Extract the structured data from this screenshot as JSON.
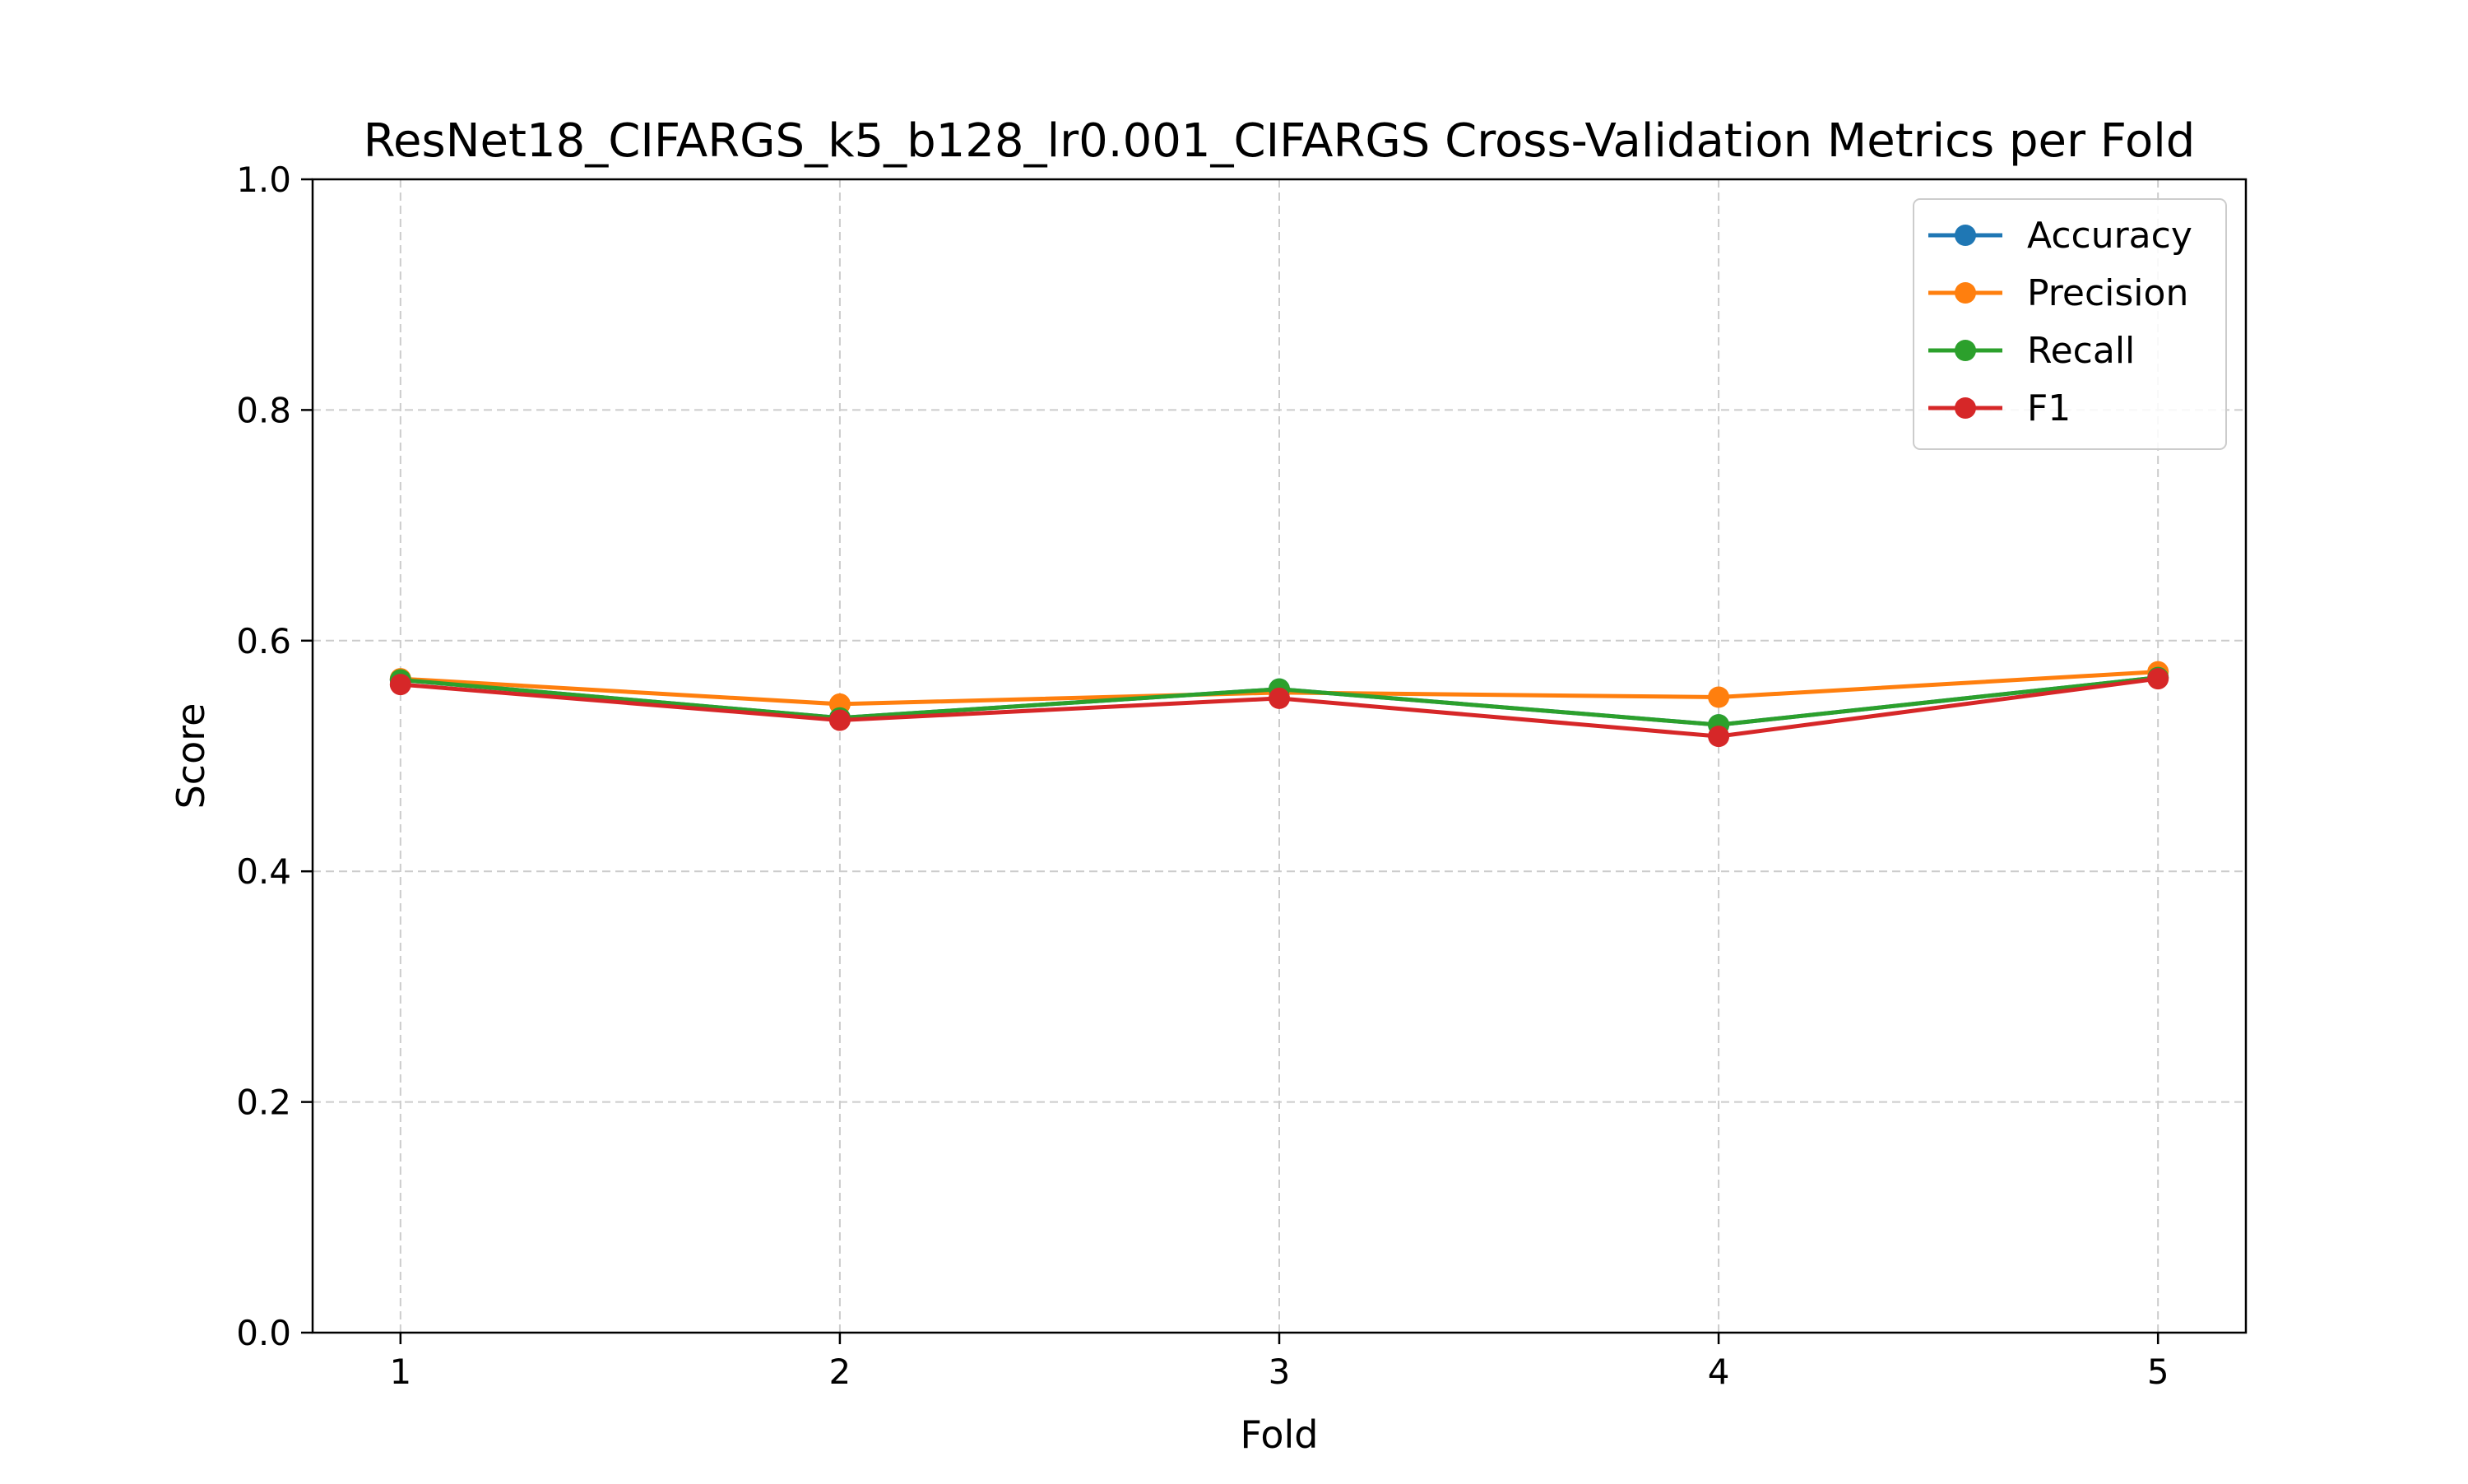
{
  "chart_data": {
    "type": "line",
    "title": "ResNet18_CIFARGS_k5_b128_lr0.001_CIFARGS Cross-Validation Metrics per Fold",
    "xlabel": "Fold",
    "ylabel": "Score",
    "x": [
      1,
      2,
      3,
      4,
      5
    ],
    "x_tick_labels": [
      "1",
      "2",
      "3",
      "4",
      "5"
    ],
    "xlim": [
      0.8,
      5.2
    ],
    "ylim": [
      0.0,
      1.0
    ],
    "y_ticks": [
      0.0,
      0.2,
      0.4,
      0.6,
      0.8,
      1.0
    ],
    "y_tick_labels": [
      "0.0",
      "0.2",
      "0.4",
      "0.6",
      "0.8",
      "1.0"
    ],
    "grid": true,
    "grid_style": "dashed",
    "legend_position": "top-right",
    "series": [
      {
        "name": "Accuracy",
        "color": "#1f77b4",
        "values": [
          0.566,
          0.533,
          0.558,
          0.527,
          0.568
        ]
      },
      {
        "name": "Precision",
        "color": "#ff7f0e",
        "values": [
          0.567,
          0.545,
          0.555,
          0.551,
          0.573
        ]
      },
      {
        "name": "Recall",
        "color": "#2ca02c",
        "values": [
          0.566,
          0.533,
          0.558,
          0.527,
          0.568
        ]
      },
      {
        "name": "F1",
        "color": "#d62728",
        "values": [
          0.562,
          0.531,
          0.55,
          0.517,
          0.567
        ]
      }
    ]
  }
}
